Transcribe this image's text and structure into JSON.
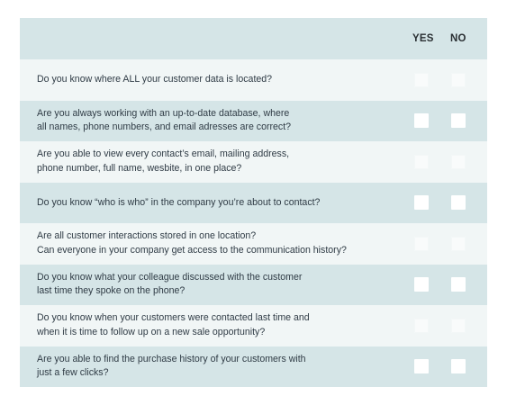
{
  "header": {
    "yes_label": "YES",
    "no_label": "NO"
  },
  "questions": [
    {
      "text": "Do you know where ALL your customer data is located?",
      "yes": false,
      "no": false
    },
    {
      "text": "Are you always working with an up-to-date database, where\nall names, phone numbers, and email adresses are correct?",
      "yes": false,
      "no": false
    },
    {
      "text": "Are you able to view every contact’s email, mailing address,\nphone number, full name, wesbite, in one place?",
      "yes": false,
      "no": false
    },
    {
      "text": "Do you know “who is who” in the company you’re about to contact?",
      "yes": false,
      "no": false
    },
    {
      "text": "Are all customer interactions stored in one location?\nCan everyone in your company get access to the communication history?",
      "yes": false,
      "no": false
    },
    {
      "text": "Do you know what your colleague discussed with the customer\nlast time they spoke on the phone?",
      "yes": false,
      "no": false
    },
    {
      "text": "Do you know when your customers were contacted last time and\nwhen it is time to follow up on a new sale opportunity?",
      "yes": false,
      "no": false
    },
    {
      "text": "Are you able to find the purchase history of your customers with\njust a few clicks?",
      "yes": false,
      "no": false
    }
  ]
}
